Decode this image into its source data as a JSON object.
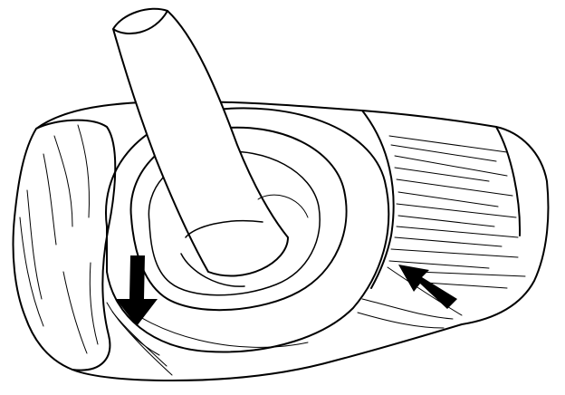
{
  "figure": {
    "subject": "",
    "ink_color": "#000000",
    "paper_color": "#ffffff",
    "callouts": [
      {
        "name": "left-arrow",
        "direction": "down"
      },
      {
        "name": "right-arrow",
        "direction": "up-left"
      }
    ]
  }
}
